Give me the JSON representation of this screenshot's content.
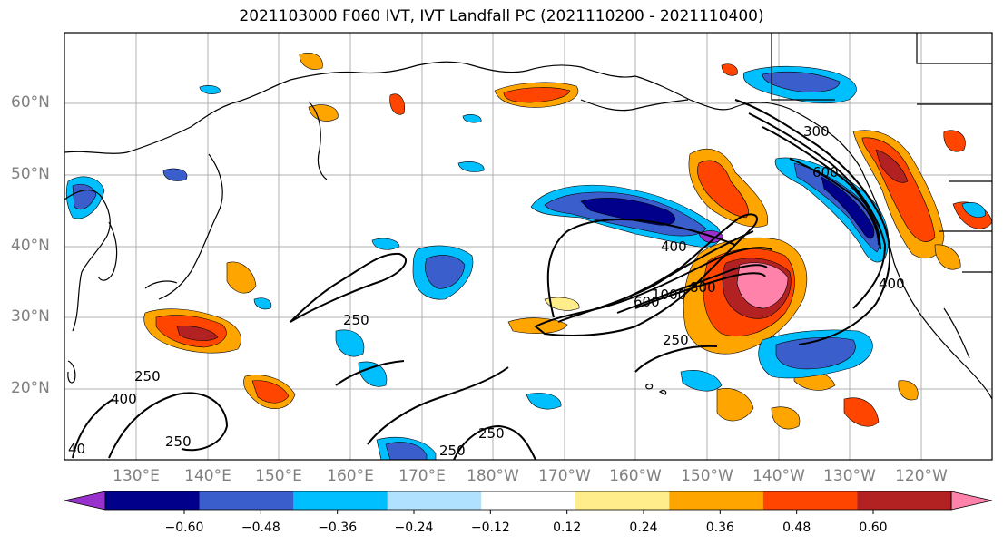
{
  "title": "2021103000 F060 IVT, IVT Landfall PC (2021110200 - 2021110400)",
  "lat_labels": [
    "60°N",
    "50°N",
    "40°N",
    "30°N",
    "20°N"
  ],
  "lon_labels": [
    "130°E",
    "140°E",
    "150°E",
    "160°E",
    "170°E",
    "180°W",
    "170°W",
    "160°W",
    "150°W",
    "140°W",
    "130°W",
    "120°W"
  ],
  "contour_labels": [
    "250",
    "250",
    "250",
    "250",
    "250",
    "250",
    "400",
    "400",
    "400",
    "600",
    "600",
    "800",
    "1000",
    "300",
    "40"
  ],
  "colorbar": {
    "ticks": [
      "−0.60",
      "−0.48",
      "−0.36",
      "−0.24",
      "−0.12",
      "0.12",
      "0.24",
      "0.36",
      "0.48",
      "0.60"
    ],
    "colors": [
      "#9932cc",
      "#00008b",
      "#3a5fcd",
      "#00bfff",
      "#b0e2ff",
      "#ffffff",
      "#ffec8b",
      "#ffa500",
      "#ff4500",
      "#b22222",
      "#ff82ab"
    ]
  },
  "colors": {
    "coast": "#000000",
    "grid": "#b0b0b0"
  }
}
